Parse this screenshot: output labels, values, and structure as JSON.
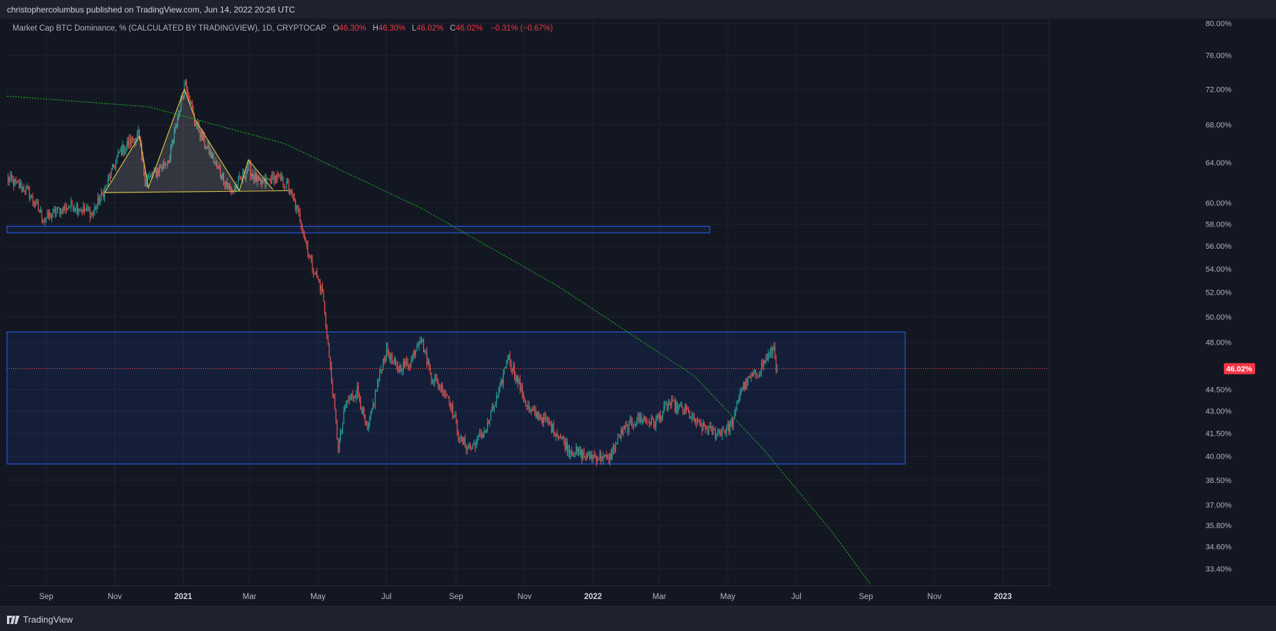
{
  "header": {
    "publish_text": "christophercolumbus published on TradingView.com, Jun 14, 2022 20:26 UTC"
  },
  "legend": {
    "title": "Market Cap BTC Dominance, % (CALCULATED BY TRADINGVIEW), 1D, CRYPTOCAP",
    "o_label": "O",
    "o_value": "46.30%",
    "h_label": "H",
    "h_value": "46.30%",
    "l_label": "L",
    "l_value": "46.02%",
    "c_label": "C",
    "c_value": "46.02%",
    "change": "−0.31% (−0.67%)"
  },
  "footer": {
    "brand": "TradingView",
    "logo_icon": "tradingview-logo-icon"
  },
  "colors": {
    "background": "#131722",
    "up": "#26a69a",
    "down": "#ef5350",
    "zone_border": "#2962ff",
    "curve": "#22ab22",
    "pattern": "#d4c24a",
    "price_label": "#f23645"
  },
  "chart_data": {
    "type": "candlestick",
    "scale": "log",
    "title": "",
    "x_axis_ticks": [
      "Sep",
      "Nov",
      "2021",
      "Mar",
      "May",
      "Jul",
      "Sep",
      "Nov",
      "2022",
      "Mar",
      "May",
      "Jul",
      "Sep",
      "Nov",
      "2023"
    ],
    "y_axis_ticks": [
      "80.00%",
      "76.00%",
      "72.00%",
      "68.00%",
      "64.00%",
      "60.00%",
      "58.00%",
      "56.00%",
      "54.00%",
      "52.00%",
      "50.00%",
      "48.00%",
      "44.50%",
      "43.00%",
      "41.50%",
      "40.00%",
      "38.50%",
      "37.00%",
      "35.80%",
      "34.60%",
      "33.40%"
    ],
    "x_range": [
      "2020-07-28",
      "2023-02-10"
    ],
    "y_range_pct": [
      32.5,
      80.5
    ],
    "last_price_label": "46.02%",
    "last_price": 46.02,
    "grid": true,
    "price_path_anchors": [
      [
        "2020-07-28",
        62.4
      ],
      [
        "2020-08-15",
        61.2
      ],
      [
        "2020-08-30",
        58.4
      ],
      [
        "2020-09-10",
        59.2
      ],
      [
        "2020-09-25",
        59.8
      ],
      [
        "2020-10-12",
        59.0
      ],
      [
        "2020-10-24",
        61.5
      ],
      [
        "2020-11-05",
        65.0
      ],
      [
        "2020-11-13",
        66.0
      ],
      [
        "2020-11-22",
        67.0
      ],
      [
        "2020-11-28",
        62.2
      ],
      [
        "2020-12-08",
        63.0
      ],
      [
        "2020-12-20",
        64.5
      ],
      [
        "2020-12-29",
        70.0
      ],
      [
        "2021-01-03",
        73.0
      ],
      [
        "2021-01-11",
        68.5
      ],
      [
        "2021-01-22",
        65.5
      ],
      [
        "2021-02-04",
        62.8
      ],
      [
        "2021-02-13",
        61.0
      ],
      [
        "2021-02-28",
        63.5
      ],
      [
        "2021-03-10",
        61.8
      ],
      [
        "2021-03-25",
        62.6
      ],
      [
        "2021-04-05",
        61.5
      ],
      [
        "2021-04-15",
        58.5
      ],
      [
        "2021-04-25",
        54.5
      ],
      [
        "2021-05-05",
        52.0
      ],
      [
        "2021-05-12",
        46.0
      ],
      [
        "2021-05-19",
        40.5
      ],
      [
        "2021-05-26",
        43.5
      ],
      [
        "2021-06-05",
        44.5
      ],
      [
        "2021-06-14",
        41.5
      ],
      [
        "2021-06-26",
        46.0
      ],
      [
        "2021-07-01",
        47.5
      ],
      [
        "2021-07-10",
        46.0
      ],
      [
        "2021-07-22",
        46.5
      ],
      [
        "2021-07-31",
        48.5
      ],
      [
        "2021-08-10",
        45.5
      ],
      [
        "2021-08-25",
        44.0
      ],
      [
        "2021-09-05",
        41.0
      ],
      [
        "2021-09-14",
        40.5
      ],
      [
        "2021-09-28",
        41.8
      ],
      [
        "2021-10-10",
        44.5
      ],
      [
        "2021-10-17",
        47.0
      ],
      [
        "2021-10-24",
        45.5
      ],
      [
        "2021-11-05",
        43.0
      ],
      [
        "2021-11-18",
        42.5
      ],
      [
        "2021-11-30",
        41.5
      ],
      [
        "2021-12-10",
        40.5
      ],
      [
        "2021-12-25",
        40.0
      ],
      [
        "2022-01-05",
        40.0
      ],
      [
        "2022-01-15",
        39.8
      ],
      [
        "2022-01-26",
        41.5
      ],
      [
        "2022-02-10",
        42.5
      ],
      [
        "2022-02-25",
        42.2
      ],
      [
        "2022-03-10",
        43.5
      ],
      [
        "2022-03-25",
        43.0
      ],
      [
        "2022-04-05",
        42.0
      ],
      [
        "2022-04-20",
        41.5
      ],
      [
        "2022-05-01",
        41.8
      ],
      [
        "2022-05-07",
        42.5
      ],
      [
        "2022-05-12",
        44.5
      ],
      [
        "2022-05-21",
        45.3
      ],
      [
        "2022-05-28",
        45.8
      ],
      [
        "2022-06-08",
        47.2
      ],
      [
        "2022-06-11",
        47.7
      ],
      [
        "2022-06-13",
        46.3
      ],
      [
        "2022-06-14",
        46.02
      ]
    ],
    "annotations": {
      "resistance_band": {
        "from": "2020-07-28",
        "to": "2022-04-15",
        "low": 57.2,
        "high": 57.8
      },
      "range_box": {
        "from": "2020-07-28",
        "to": "2022-10-06",
        "low": 39.5,
        "high": 48.8
      },
      "curve": [
        [
          "2020-07-28",
          71.2
        ],
        [
          "2020-12-01",
          70.0
        ],
        [
          "2021-04-01",
          66.0
        ],
        [
          "2021-08-01",
          59.5
        ],
        [
          "2021-12-01",
          52.5
        ],
        [
          "2022-04-01",
          45.5
        ],
        [
          "2022-06-01",
          40.5
        ],
        [
          "2022-08-01",
          35.5
        ],
        [
          "2022-09-05",
          32.6
        ]
      ],
      "pattern_lines": [
        [
          [
            "2020-10-23",
            61.0
          ],
          [
            "2020-11-23",
            66.8
          ],
          [
            "2020-12-01",
            61.5
          ],
          [
            "2021-01-02",
            72.0
          ],
          [
            "2021-01-12",
            68.5
          ],
          [
            "2021-02-20",
            61.2
          ],
          [
            "2021-02-28",
            64.3
          ],
          [
            "2021-03-22",
            61.3
          ]
        ],
        [
          [
            "2020-10-23",
            61.0
          ],
          [
            "2021-04-05",
            61.2
          ]
        ]
      ]
    }
  }
}
